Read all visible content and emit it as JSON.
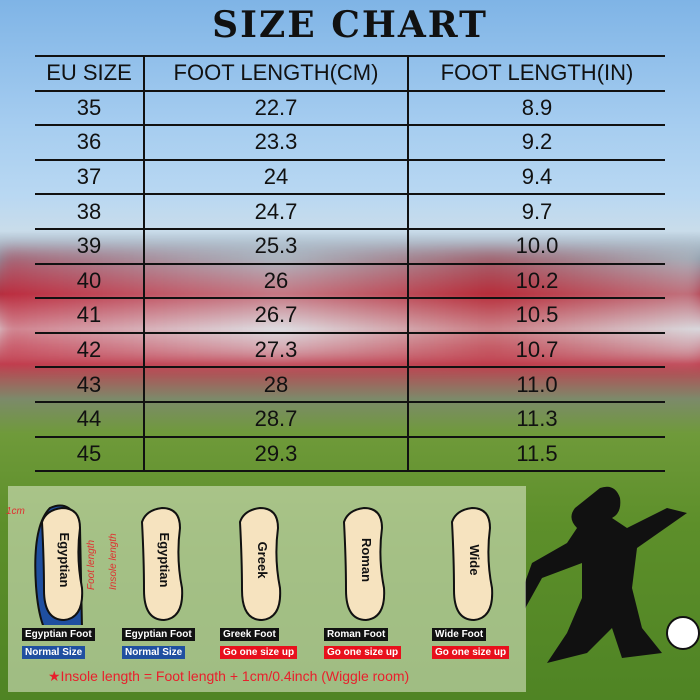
{
  "title": "SIZE CHART",
  "table": {
    "headers": [
      "EU SIZE",
      "FOOT LENGTH(CM)",
      "FOOT LENGTH(IN)"
    ],
    "rows": [
      [
        "35",
        "22.7",
        "8.9"
      ],
      [
        "36",
        "23.3",
        "9.2"
      ],
      [
        "37",
        "24",
        "9.4"
      ],
      [
        "38",
        "24.7",
        "9.7"
      ],
      [
        "39",
        "25.3",
        "10.0"
      ],
      [
        "40",
        "26",
        "10.2"
      ],
      [
        "41",
        "26.7",
        "10.5"
      ],
      [
        "42",
        "27.3",
        "10.7"
      ],
      [
        "43",
        "28",
        "11.0"
      ],
      [
        "44",
        "28.7",
        "11.3"
      ],
      [
        "45",
        "29.3",
        "11.5"
      ]
    ]
  },
  "guide": {
    "one_cm": "1cm",
    "foot_length": "Foot length",
    "insole_length": "Insole length",
    "feet": [
      {
        "word": "Egyptian",
        "type": "Egyptian Foot",
        "advice": "Normal Size",
        "advice_color": "#1f4fa0"
      },
      {
        "word": "Egyptian",
        "type": "Egyptian Foot",
        "advice": "Normal Size",
        "advice_color": "#1f4fa0"
      },
      {
        "word": "Greek",
        "type": "Greek Foot",
        "advice": "Go one size up",
        "advice_color": "#e8101c"
      },
      {
        "word": "Roman",
        "type": "Roman Foot",
        "advice": "Go one size up",
        "advice_color": "#e8101c"
      },
      {
        "word": "Wide",
        "type": "Wide Foot",
        "advice": "Go one size up",
        "advice_color": "#e8101c"
      }
    ],
    "note": "★Insole length = Foot length + 1cm/0.4inch (Wiggle room)"
  }
}
